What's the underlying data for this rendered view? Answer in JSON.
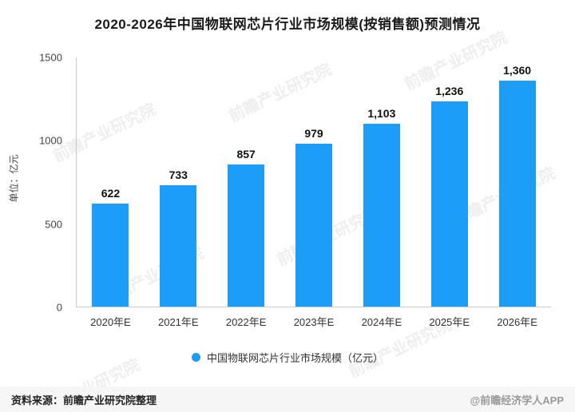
{
  "title": "2020-2026年中国物联网芯片行业市场规模(按销售额)预测情况",
  "chart_data": {
    "type": "bar",
    "title": "2020-2026年中国物联网芯片行业市场规模(按销售额)预测情况",
    "categories": [
      "2020年E",
      "2021年E",
      "2022年E",
      "2023年E",
      "2024年E",
      "2025年E",
      "2026年E"
    ],
    "values": [
      622,
      733,
      857,
      979,
      1103,
      1236,
      1360
    ],
    "value_labels": [
      "622",
      "733",
      "857",
      "979",
      "1,103",
      "1,236",
      "1,360"
    ],
    "xlabel": "",
    "ylabel": "单位：亿元",
    "ylim": [
      0,
      1500
    ],
    "yticks": [
      0,
      500,
      1000,
      1500
    ],
    "grid": false,
    "bar_color": "#1b9df8",
    "legend_position": "bottom",
    "legend": [
      {
        "label": "中国物联网芯片行业市场规模（亿元）",
        "color": "#1b9df8"
      }
    ]
  },
  "footer": {
    "source": "资料来源：前瞻产业研究院整理",
    "credit": "@前瞻经济学人APP"
  },
  "watermark": {
    "text": "前瞻产业研究院"
  }
}
